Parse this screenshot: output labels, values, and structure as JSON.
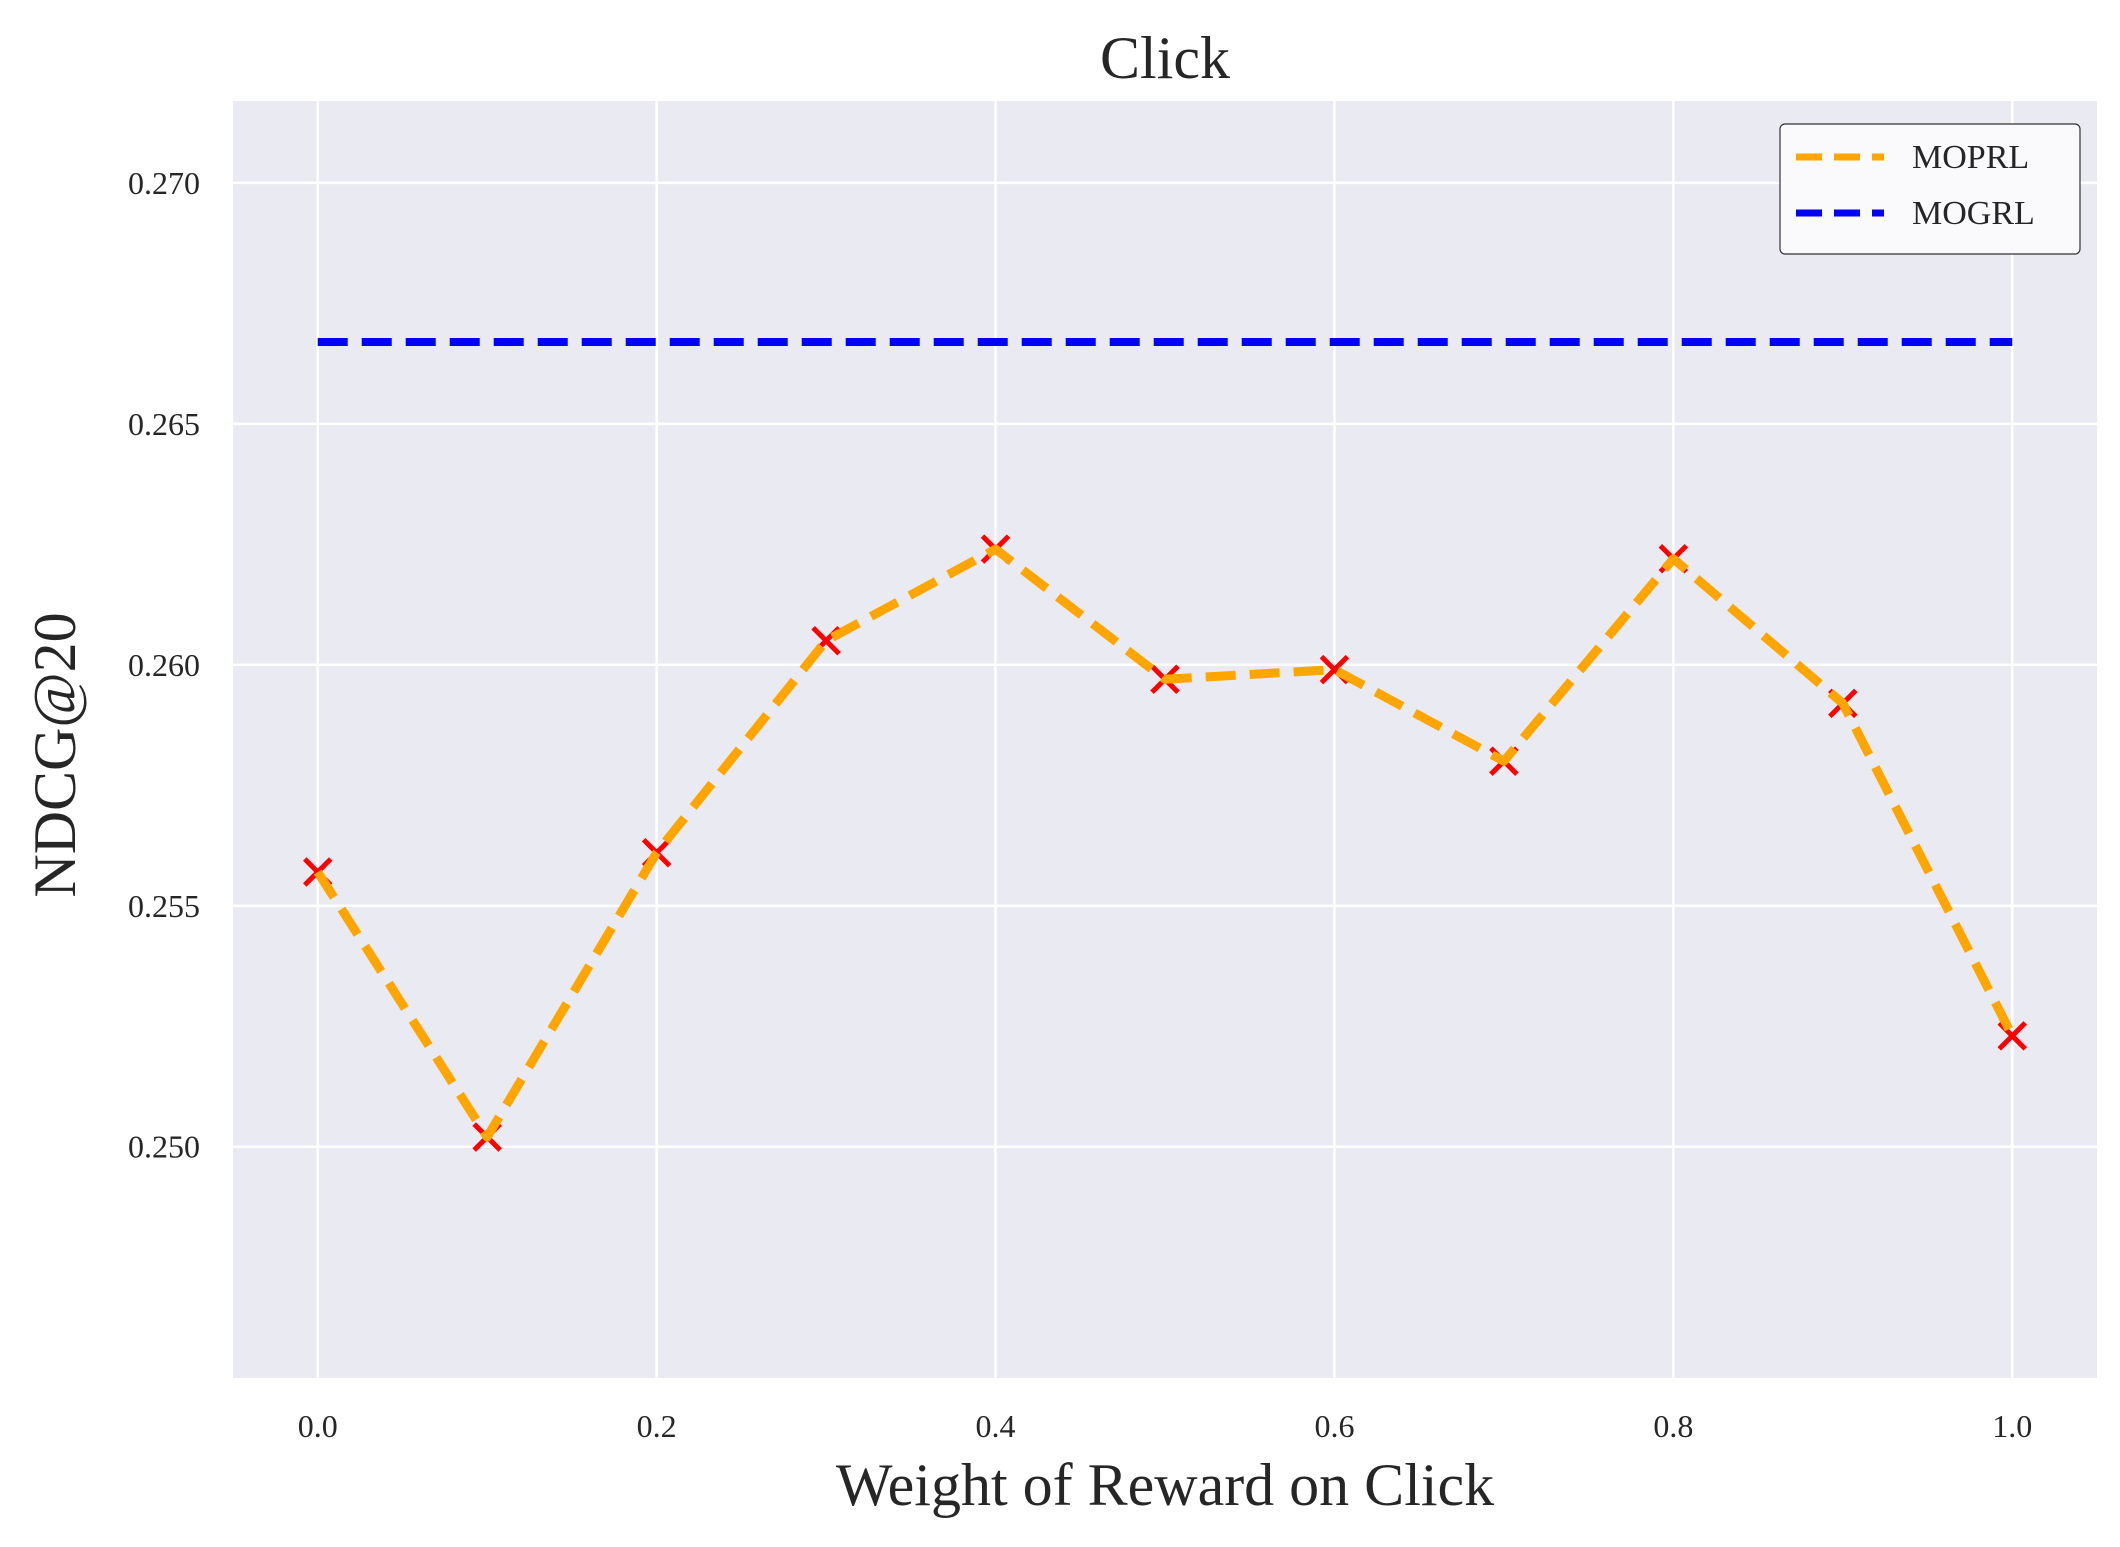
{
  "chart_data": {
    "type": "line",
    "title": "Click",
    "xlabel": "Weight of Reward on Click",
    "ylabel": "NDCG@20",
    "x": [
      0.0,
      0.1,
      0.2,
      0.3,
      0.4,
      0.5,
      0.6,
      0.7,
      0.8,
      0.9,
      1.0
    ],
    "xlim": [
      -0.05,
      1.05
    ],
    "ylim": [
      0.2452,
      0.2717
    ],
    "xticks": [
      "0.0",
      "0.2",
      "0.4",
      "0.6",
      "0.8",
      "1.0"
    ],
    "xtick_values": [
      0.0,
      0.2,
      0.4,
      0.6,
      0.8,
      1.0
    ],
    "yticks": [
      "0.250",
      "0.255",
      "0.260",
      "0.265",
      "0.270"
    ],
    "ytick_values": [
      0.25,
      0.255,
      0.26,
      0.265,
      0.27
    ],
    "grid": true,
    "legend_position": "top-right",
    "series": [
      {
        "name": "MOPRL",
        "values": [
          0.2557,
          0.2502,
          0.2561,
          0.2605,
          0.2624,
          0.2597,
          0.2599,
          0.258,
          0.2622,
          0.2592,
          0.2523
        ],
        "color": "#FFA500",
        "line_style": "dashed",
        "marker": "x",
        "marker_color": "#FF0000"
      },
      {
        "name": "MOGRL",
        "values": [
          0.2667,
          0.2667,
          0.2667,
          0.2667,
          0.2667,
          0.2667,
          0.2667,
          0.2667,
          0.2667,
          0.2667,
          0.2667
        ],
        "color": "#0000FF",
        "line_style": "dashed"
      }
    ],
    "colors": {
      "plot_background": "#EAEAF2",
      "grid": "#FFFFFF"
    }
  }
}
